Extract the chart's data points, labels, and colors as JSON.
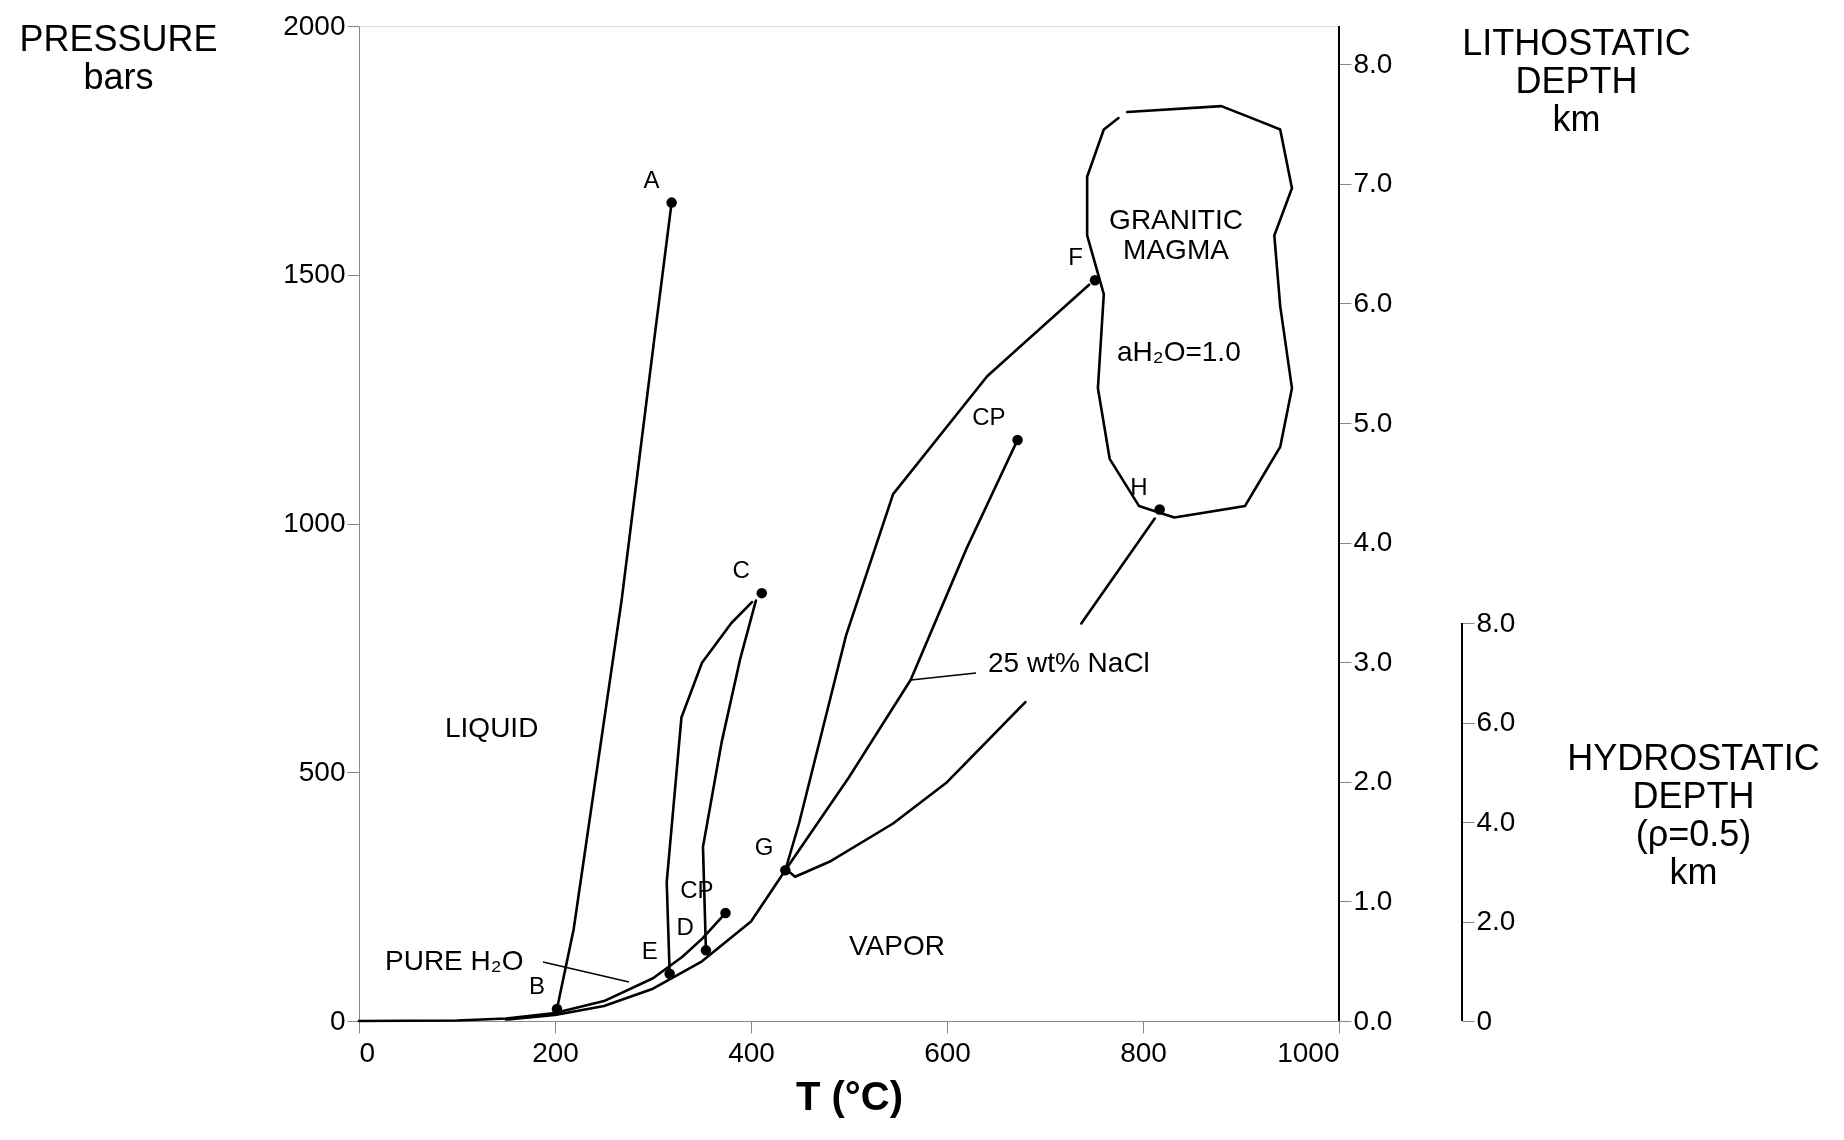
{
  "chart_data": {
    "type": "line",
    "xlabel": "T (°C)",
    "ylabel": "PRESSURE\nbars",
    "y2label": "LITHOSTATIC\nDEPTH\nkm",
    "y3label": "HYDROSTATIC\nDEPTH\n(ρ=0.5)\nkm",
    "xlim": [
      0,
      1000
    ],
    "ylim": [
      0,
      2000
    ],
    "xticks": [
      0,
      200,
      400,
      600,
      800,
      1000
    ],
    "yticks": [
      0,
      500,
      1000,
      1500,
      2000
    ],
    "y2lim": [
      0,
      8.32
    ],
    "y2ticks": [
      {
        "value": 0,
        "label": "0.0"
      },
      {
        "value": 1,
        "label": "1.0"
      },
      {
        "value": 2,
        "label": "2.0"
      },
      {
        "value": 3,
        "label": "3.0"
      },
      {
        "value": 4,
        "label": "4.0"
      },
      {
        "value": 5,
        "label": "5.0"
      },
      {
        "value": 6,
        "label": "6.0"
      },
      {
        "value": 7,
        "label": "7.0"
      },
      {
        "value": 8,
        "label": "8.0"
      }
    ],
    "y3lim": [
      0,
      20
    ],
    "y3ticks": [
      0,
      {
        "value": 2,
        "label": "2.0"
      },
      {
        "value": 4,
        "label": "4.0"
      },
      {
        "value": 6,
        "label": "6.0"
      },
      {
        "value": 8,
        "label": "8.0"
      }
    ],
    "grid": false,
    "series": [
      {
        "type": "line",
        "color": "#000000",
        "x": [
          0,
          100,
          150,
          200,
          250,
          300,
          330,
          350,
          374
        ],
        "values": [
          0,
          1,
          5,
          16,
          40,
          86,
          129,
          165,
          217
        ]
      },
      {
        "type": "line",
        "color": "#000000",
        "x": [
          150,
          200,
          250,
          300,
          350,
          400,
          435,
          500,
          563,
          620,
          672
        ],
        "values": [
          3,
          12,
          30,
          65,
          120,
          200,
          303,
          490,
          686,
          950,
          1168
        ]
      },
      {
        "type": "line",
        "color": "#000000",
        "x": [
          319,
          301,
          268,
          219,
          202
        ],
        "values": [
          1645,
          1366,
          846,
          184,
          24
        ]
      },
      {
        "type": "line",
        "color": "#000000",
        "x": [
          317,
          314,
          329,
          350,
          380,
          401
        ],
        "values": [
          95,
          279,
          610,
          720,
          800,
          842
        ]
      },
      {
        "type": "line",
        "color": "#000000",
        "x": [
          405,
          389,
          370,
          351,
          354
        ],
        "values": [
          845,
          728,
          560,
          350,
          142
        ]
      },
      {
        "type": "line",
        "color": "#000000",
        "x": [
          745,
          641,
          545,
          497,
          473,
          449,
          435
        ],
        "values": [
          1480,
          1296,
          1059,
          775,
          586,
          397,
          303
        ]
      },
      {
        "type": "line",
        "color": "#000000",
        "x": [
          812,
          737
        ],
        "values": [
          1010,
          799
        ]
      },
      {
        "type": "line",
        "color": "#000000",
        "x": [
          680,
          600,
          545,
          480,
          445,
          437
        ],
        "values": [
          641,
          480,
          397,
          320,
          290,
          303
        ]
      },
      {
        "type": "line",
        "color": "#000000",
        "x": [
          784,
          880,
          940,
          952,
          934,
          940,
          952,
          940,
          904,
          832,
          796,
          766,
          754,
          760,
          743,
          743,
          760,
          775
        ],
        "values": [
          1827,
          1839,
          1792,
          1674,
          1579,
          1437,
          1272,
          1154,
          1035,
          1012,
          1035,
          1130,
          1272,
          1461,
          1579,
          1697,
          1792,
          1815
        ]
      },
      {
        "type": "scatter",
        "marker": "circle",
        "color": "#000000",
        "x": [
          319,
          202,
          411,
          354,
          317,
          751,
          435,
          817,
          374,
          672
        ],
        "values": [
          1645,
          24,
          860,
          142,
          95,
          1489,
          303,
          1028,
          217,
          1168
        ],
        "value_labels": [
          "A",
          "B",
          "C",
          "D",
          "E",
          "F",
          "G",
          "H",
          "CP",
          "CP"
        ]
      }
    ],
    "annotations": [
      "LIQUID",
      "VAPOR",
      "GRANITIC\nMAGMA",
      "aH₂O=1.0",
      "25 wt% NaCl",
      "PURE H₂O"
    ]
  }
}
